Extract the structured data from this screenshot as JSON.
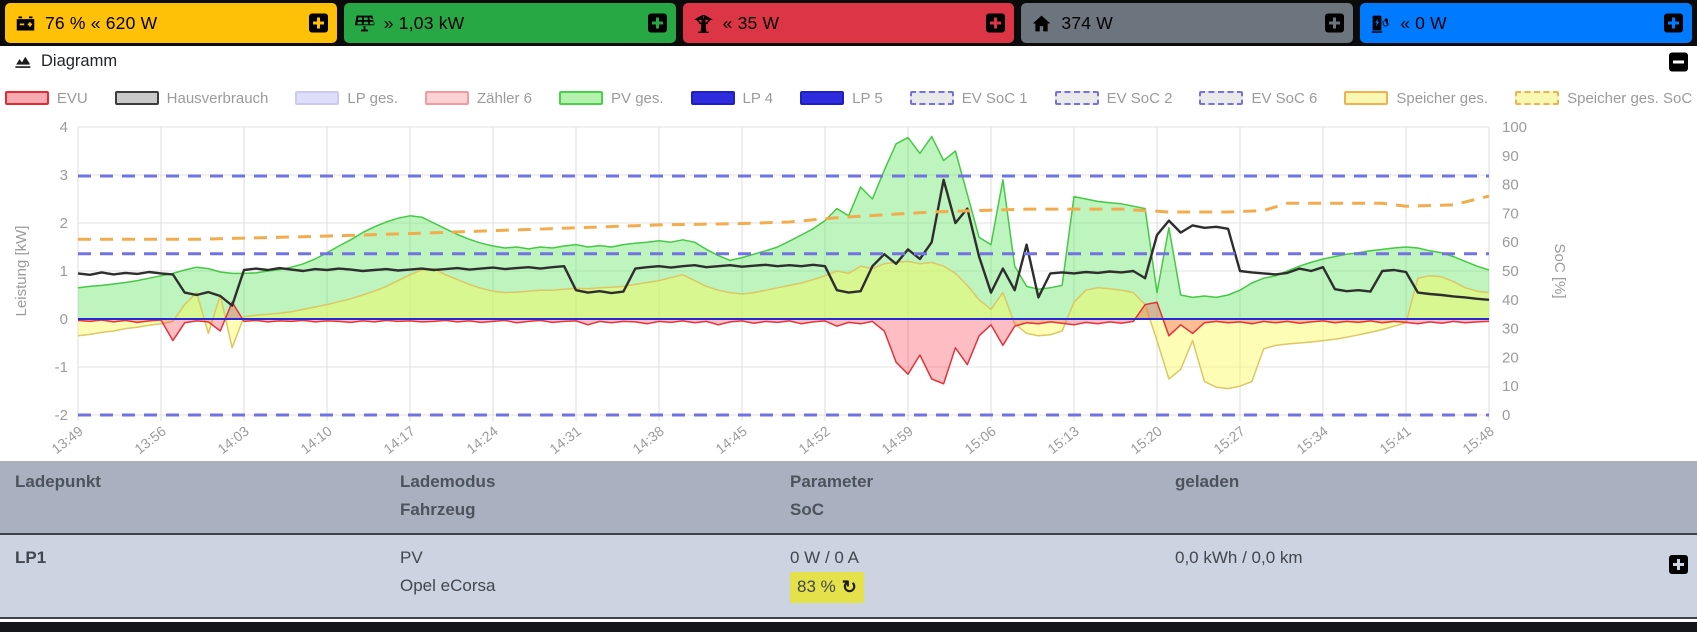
{
  "status_bar": {
    "tiles": [
      {
        "id": "battery",
        "text": "76 % « 620 W",
        "color": "#ffc107"
      },
      {
        "id": "pv",
        "text": "» 1,03 kW",
        "color": "#28a745"
      },
      {
        "id": "grid",
        "text": "« 35 W",
        "color": "#dc3545"
      },
      {
        "id": "house",
        "text": "374 W",
        "color": "#6c757d"
      },
      {
        "id": "chargepoint",
        "text": "« 0 W",
        "color": "#007bff"
      }
    ]
  },
  "diagram_header": {
    "title": "Diagramm"
  },
  "icons": {
    "refresh": "↻"
  },
  "chart_data": {
    "type": "area",
    "ylabel_left": "Leistung [kW]",
    "ylabel_right": "SoC [%]",
    "ylim": [
      -2,
      4
    ],
    "soc_lim": [
      0,
      100
    ],
    "x_step_minutes": 7,
    "grid": true,
    "x_labels": [
      "13:49",
      "13:56",
      "14:03",
      "14:10",
      "14:17",
      "14:24",
      "14:31",
      "14:38",
      "14:45",
      "14:52",
      "14:59",
      "15:06",
      "15:13",
      "15:20",
      "15:27",
      "15:34",
      "15:41",
      "15:48"
    ],
    "legend": [
      {
        "label": "EVU",
        "fill": "#f7aab0",
        "stroke": "#e42a35",
        "dash": false
      },
      {
        "label": "Hausverbrauch",
        "fill": "#c9c9c9",
        "stroke": "#3c3c3c",
        "dash": false
      },
      {
        "label": "LP ges.",
        "fill": "#dedefa",
        "stroke": "#cbcbf2",
        "dash": false
      },
      {
        "label": "Zähler 6",
        "fill": "#fbd3d5",
        "stroke": "#f59aa0",
        "dash": false
      },
      {
        "label": "PV ges.",
        "fill": "#b5f2b0",
        "stroke": "#49d249",
        "dash": false
      },
      {
        "label": "LP 4",
        "fill": "#2d2ddd",
        "stroke": "#2020c0",
        "dash": false
      },
      {
        "label": "LP 5",
        "fill": "#2d2ddd",
        "stroke": "#2020c0",
        "dash": false
      },
      {
        "label": "EV SoC 1",
        "fill": "#e9e9e9",
        "stroke": "#7272e2",
        "dash": true
      },
      {
        "label": "EV SoC 2",
        "fill": "#e9e9e9",
        "stroke": "#7272e2",
        "dash": true
      },
      {
        "label": "EV SoC 6",
        "fill": "#e9e9e9",
        "stroke": "#7272e2",
        "dash": true
      },
      {
        "label": "Speicher ges.",
        "fill": "#f8f8b2",
        "stroke": "#f0b14e",
        "dash": false
      },
      {
        "label": "Speicher ges. SoC",
        "fill": "#f8f8b2",
        "stroke": "#f0b14e",
        "dash": true
      }
    ],
    "series": [
      {
        "name": "PV ges.",
        "axis": "kW",
        "type": "area",
        "stroke": "#45c945",
        "fill": "rgba(110,230,110,0.45)",
        "width": 1.5,
        "step_min": 1,
        "values": [
          0.65,
          0.68,
          0.7,
          0.73,
          0.76,
          0.8,
          0.85,
          0.9,
          0.95,
          1.02,
          1.08,
          1.05,
          0.98,
          0.95,
          0.95,
          0.96,
          1.0,
          1.03,
          1.08,
          1.15,
          1.25,
          1.38,
          1.52,
          1.65,
          1.8,
          1.92,
          2.02,
          2.1,
          2.15,
          2.12,
          2.0,
          1.88,
          1.76,
          1.66,
          1.58,
          1.52,
          1.48,
          1.5,
          1.46,
          1.5,
          1.48,
          1.52,
          1.55,
          1.5,
          1.53,
          1.5,
          1.55,
          1.58,
          1.6,
          1.63,
          1.6,
          1.65,
          1.6,
          1.45,
          1.32,
          1.22,
          1.28,
          1.35,
          1.42,
          1.5,
          1.62,
          1.75,
          1.88,
          2.05,
          2.3,
          2.15,
          2.75,
          2.5,
          3.1,
          3.65,
          3.78,
          3.45,
          3.8,
          3.3,
          3.5,
          2.6,
          1.7,
          1.55,
          2.9,
          1.1,
          0.68,
          0.62,
          0.65,
          0.7,
          2.55,
          2.5,
          2.45,
          2.42,
          2.4,
          2.35,
          2.3,
          0.55,
          1.9,
          0.5,
          0.45,
          0.48,
          0.45,
          0.5,
          0.6,
          0.75,
          0.85,
          0.9,
          1.0,
          1.1,
          1.18,
          1.25,
          1.3,
          1.35,
          1.38,
          1.42,
          1.45,
          1.48,
          1.5,
          1.48,
          1.42,
          1.38,
          1.3,
          1.2,
          1.1,
          1.02
        ]
      },
      {
        "name": "Speicher ges.",
        "axis": "kW",
        "type": "area",
        "stroke": "#dcc763",
        "fill": "rgba(250,250,90,0.45)",
        "width": 1.5,
        "step_min": 1,
        "values": [
          -0.35,
          -0.32,
          -0.28,
          -0.25,
          -0.2,
          -0.17,
          -0.13,
          -0.1,
          -0.05,
          0.3,
          0.55,
          -0.3,
          0.5,
          -0.6,
          0.05,
          0.08,
          0.1,
          0.12,
          0.15,
          0.2,
          0.25,
          0.3,
          0.36,
          0.42,
          0.5,
          0.58,
          0.68,
          0.8,
          0.92,
          1.02,
          1.05,
          0.92,
          0.82,
          0.72,
          0.64,
          0.58,
          0.55,
          0.56,
          0.58,
          0.6,
          0.6,
          0.62,
          0.64,
          0.63,
          0.65,
          0.66,
          0.68,
          0.72,
          0.76,
          0.8,
          0.86,
          0.92,
          0.8,
          0.68,
          0.6,
          0.55,
          0.52,
          0.55,
          0.6,
          0.65,
          0.7,
          0.75,
          0.82,
          0.9,
          1.0,
          0.95,
          1.1,
          1.05,
          1.15,
          1.18,
          1.2,
          1.15,
          1.18,
          1.1,
          0.95,
          0.7,
          0.4,
          0.2,
          0.55,
          -0.1,
          -0.3,
          -0.35,
          -0.33,
          -0.25,
          0.35,
          0.6,
          0.65,
          0.63,
          0.6,
          0.55,
          0.3,
          -0.45,
          -1.25,
          -1.05,
          -0.45,
          -1.3,
          -1.42,
          -1.45,
          -1.4,
          -1.3,
          -0.62,
          -0.55,
          -0.52,
          -0.5,
          -0.48,
          -0.45,
          -0.42,
          -0.38,
          -0.33,
          -0.28,
          -0.22,
          -0.15,
          -0.08,
          0.85,
          0.9,
          0.88,
          0.78,
          0.65,
          0.58,
          0.55
        ]
      },
      {
        "name": "EVU",
        "axis": "kW",
        "type": "area",
        "stroke": "#e3333c",
        "fill": "rgba(245,70,80,0.35)",
        "width": 1.5,
        "step_min": 1,
        "values": [
          -0.03,
          -0.05,
          -0.02,
          -0.06,
          -0.03,
          -0.07,
          -0.04,
          -0.02,
          -0.45,
          -0.08,
          -0.04,
          -0.06,
          -0.25,
          0.35,
          -0.05,
          -0.03,
          -0.06,
          -0.04,
          -0.05,
          -0.03,
          -0.06,
          -0.04,
          -0.05,
          -0.07,
          -0.04,
          -0.06,
          -0.03,
          -0.05,
          -0.04,
          -0.06,
          -0.05,
          -0.03,
          -0.06,
          -0.04,
          -0.07,
          -0.05,
          -0.03,
          -0.08,
          -0.05,
          -0.03,
          -0.07,
          -0.05,
          -0.04,
          -0.12,
          -0.05,
          -0.08,
          -0.05,
          -0.06,
          -0.1,
          -0.05,
          -0.07,
          -0.04,
          -0.08,
          -0.05,
          -0.12,
          -0.06,
          -0.04,
          -0.09,
          -0.05,
          -0.07,
          -0.04,
          -0.1,
          -0.06,
          -0.04,
          -0.15,
          -0.07,
          -0.1,
          -0.05,
          -0.25,
          -0.9,
          -1.15,
          -0.75,
          -1.25,
          -1.35,
          -0.6,
          -0.95,
          -0.35,
          -0.12,
          -0.55,
          -0.15,
          -0.08,
          -0.1,
          -0.06,
          -0.09,
          -0.12,
          -0.07,
          -0.1,
          -0.06,
          -0.09,
          -0.05,
          0.3,
          0.35,
          -0.35,
          -0.12,
          -0.3,
          -0.08,
          -0.05,
          -0.08,
          -0.06,
          -0.1,
          -0.05,
          -0.08,
          -0.05,
          -0.09,
          -0.06,
          -0.04,
          -0.08,
          -0.05,
          -0.07,
          -0.04,
          -0.08,
          -0.05,
          -0.07,
          -0.1,
          -0.06,
          -0.09,
          -0.05,
          -0.08,
          -0.06,
          -0.05
        ]
      },
      {
        "name": "LP ges.",
        "axis": "kW",
        "type": "line",
        "stroke": "#d9d9f2",
        "width": 1.5,
        "step_min": 119,
        "values": [
          0,
          0
        ]
      },
      {
        "name": "Zähler 6",
        "axis": "kW",
        "type": "line",
        "stroke": "#f5a0a0",
        "width": 1.2,
        "step_min": 119,
        "values": [
          0,
          0
        ]
      },
      {
        "name": "LP 4",
        "axis": "kW",
        "type": "line",
        "stroke": "#2a2ad4",
        "width": 2,
        "step_min": 119,
        "values": [
          0,
          0
        ]
      },
      {
        "name": "LP 5",
        "axis": "kW",
        "type": "line",
        "stroke": "#2a2ad4",
        "width": 2,
        "step_min": 119,
        "values": [
          0,
          0
        ]
      },
      {
        "name": "Hausverbrauch",
        "axis": "kW",
        "type": "line",
        "stroke": "#2e2e2e",
        "width": 2.4,
        "step_min": 1,
        "values": [
          0.95,
          0.92,
          0.97,
          0.93,
          0.96,
          0.94,
          0.98,
          0.95,
          0.93,
          0.55,
          0.5,
          0.56,
          0.48,
          0.28,
          1.02,
          1.05,
          1.02,
          1.06,
          1.03,
          1.0,
          1.04,
          1.02,
          1.05,
          1.03,
          1.0,
          1.02,
          1.04,
          1.01,
          1.03,
          1.05,
          1.02,
          1.04,
          1.06,
          1.03,
          1.05,
          1.07,
          1.04,
          1.06,
          1.08,
          1.05,
          1.08,
          1.1,
          0.6,
          0.55,
          0.58,
          0.54,
          0.57,
          1.05,
          1.08,
          1.1,
          1.07,
          1.1,
          1.12,
          1.08,
          1.1,
          1.12,
          1.09,
          1.11,
          1.13,
          1.1,
          1.12,
          1.1,
          1.13,
          1.1,
          0.6,
          0.55,
          0.58,
          1.1,
          1.35,
          1.15,
          1.45,
          1.25,
          1.6,
          2.9,
          2.0,
          2.3,
          1.3,
          0.55,
          1.05,
          0.6,
          1.55,
          0.45,
          0.95,
          0.97,
          0.95,
          0.98,
          0.96,
          0.99,
          0.97,
          1.0,
          0.85,
          1.75,
          2.05,
          1.8,
          1.95,
          1.9,
          1.92,
          1.88,
          1.0,
          0.97,
          0.95,
          0.93,
          0.96,
          1.05,
          1.0,
          1.08,
          0.62,
          0.58,
          0.6,
          0.57,
          1.0,
          1.02,
          0.98,
          0.55,
          0.52,
          0.5,
          0.47,
          0.45,
          0.42,
          0.4
        ]
      },
      {
        "name": "EV SoC 1",
        "axis": "%",
        "type": "line",
        "stroke": "#7272e2",
        "width": 3,
        "dash": "13 9",
        "step_min": 119,
        "values": [
          83,
          83
        ]
      },
      {
        "name": "EV SoC 2",
        "axis": "%",
        "type": "line",
        "stroke": "#7272e2",
        "width": 3,
        "dash": "13 9",
        "step_min": 119,
        "values": [
          56,
          56
        ]
      },
      {
        "name": "EV SoC 6",
        "axis": "%",
        "type": "line",
        "stroke": "#7272e2",
        "width": 3,
        "dash": "13 9",
        "step_min": 119,
        "values": [
          0,
          0
        ]
      },
      {
        "name": "Speicher ges. SoC",
        "axis": "%",
        "type": "line",
        "stroke": "#f2ac4e",
        "width": 3,
        "dash": "13 9",
        "points": [
          [
            0,
            61
          ],
          [
            10,
            61
          ],
          [
            20,
            62
          ],
          [
            28,
            63
          ],
          [
            35,
            64
          ],
          [
            42,
            65
          ],
          [
            49,
            66
          ],
          [
            56,
            66.5
          ],
          [
            60,
            67
          ],
          [
            64,
            68.5
          ],
          [
            68,
            69.5
          ],
          [
            72,
            70.5
          ],
          [
            76,
            71
          ],
          [
            80,
            71.5
          ],
          [
            88,
            71.5
          ],
          [
            92,
            70.5
          ],
          [
            97,
            70.5
          ],
          [
            100,
            71
          ],
          [
            102,
            73.5
          ],
          [
            110,
            73.5
          ],
          [
            112,
            72.5
          ],
          [
            116,
            73
          ],
          [
            118,
            75
          ],
          [
            119,
            76
          ]
        ]
      }
    ]
  },
  "table": {
    "headers": [
      {
        "line1": "Ladepunkt",
        "line2": ""
      },
      {
        "line1": "Lademodus",
        "line2": "Fahrzeug"
      },
      {
        "line1": "Parameter",
        "line2": "SoC"
      },
      {
        "line1": "geladen",
        "line2": ""
      }
    ],
    "rows": [
      {
        "ladepunkt": "LP1",
        "lademodus": "PV",
        "fahrzeug": "Opel eCorsa",
        "parameter": "0 W / 0 A",
        "soc": "83 %",
        "geladen": "0,0 kWh / 0,0 km"
      }
    ],
    "soc_highlight_color": "#e5e14a"
  }
}
